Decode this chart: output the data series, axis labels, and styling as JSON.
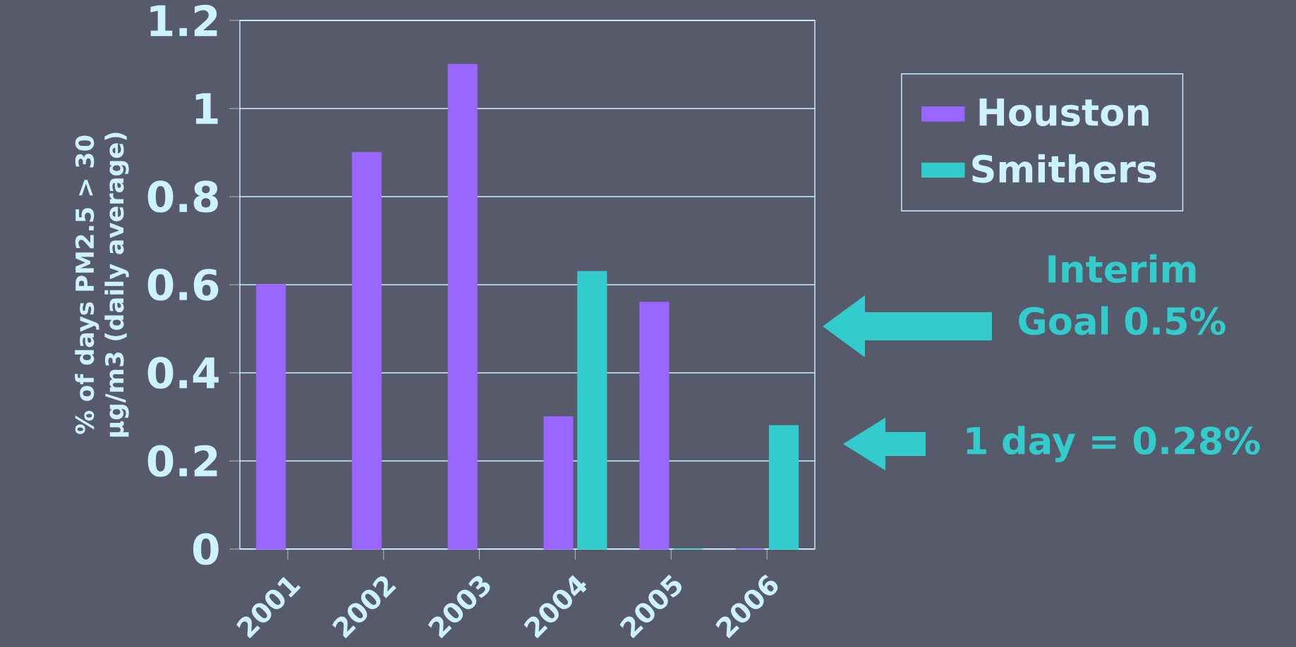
{
  "chart_data": {
    "type": "bar",
    "ylabel": "% of days PM2.5 > 30 µg/m3 (daily average)",
    "categories": [
      "2001",
      "2002",
      "2003",
      "2004",
      "2005",
      "2006"
    ],
    "series": [
      {
        "name": "Houston",
        "color": "#9966ff",
        "values": [
          0.6,
          0.9,
          1.1,
          0.3,
          0.56,
          0
        ]
      },
      {
        "name": "Smithers",
        "color": "#33cccc",
        "values": [
          null,
          null,
          null,
          0.63,
          0,
          0.28
        ]
      }
    ],
    "ylim": [
      0,
      1.2
    ],
    "yticks": [
      0,
      0.2,
      0.4,
      0.6,
      0.8,
      1,
      1.2
    ],
    "grid": "y",
    "legend": "top right",
    "annotations": [
      "Interim Goal 0.5%",
      "1 day = 0.28%"
    ]
  }
}
